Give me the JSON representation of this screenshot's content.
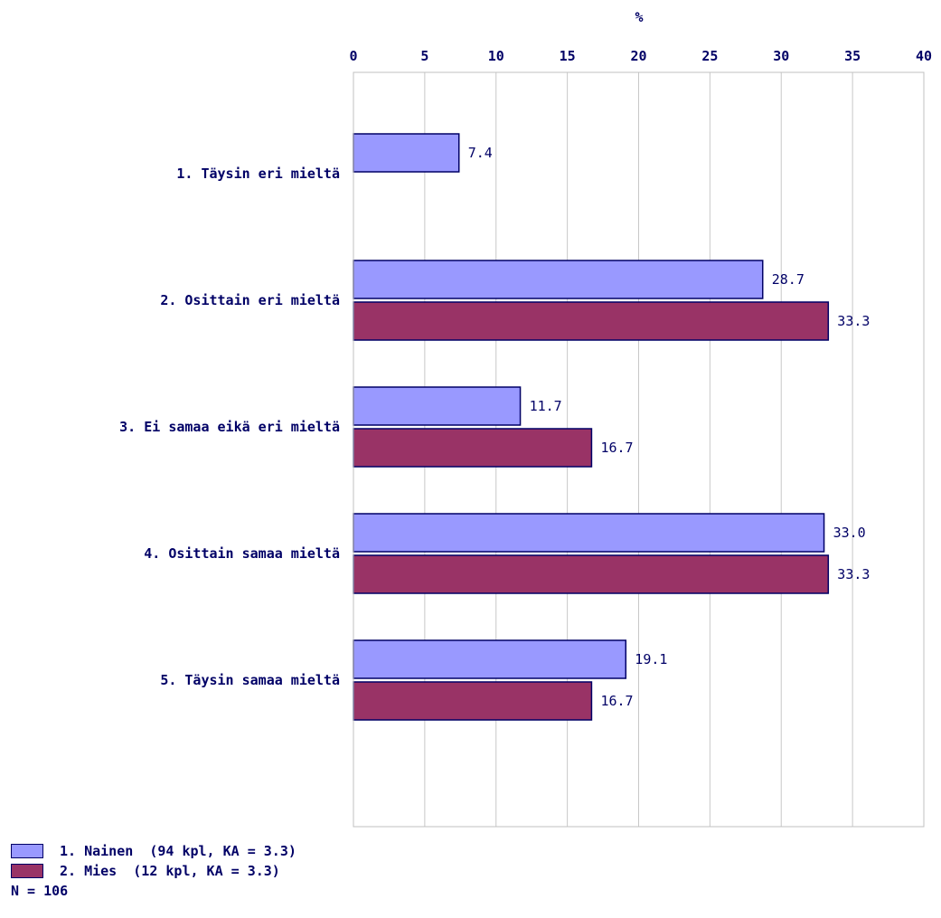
{
  "chart_data": {
    "type": "bar",
    "orientation": "horizontal",
    "xlabel": "%",
    "xlim": [
      0,
      40
    ],
    "xticks": [
      0,
      5,
      10,
      15,
      20,
      25,
      30,
      35,
      40
    ],
    "grid": true,
    "categories": [
      "1. Täysin eri mieltä",
      "2. Osittain eri mieltä",
      "3. Ei samaa eikä eri mieltä",
      "4. Osittain samaa mieltä",
      "5. Täysin samaa mieltä"
    ],
    "series": [
      {
        "name": "1. Nainen",
        "legend_label": "1. Nainen  (94 kpl, KA = 3.3)",
        "color": "#9999ff",
        "values": [
          7.4,
          28.7,
          11.7,
          33.0,
          19.1
        ],
        "labels": [
          "7.4",
          "28.7",
          "11.7",
          "33.0",
          "19.1"
        ]
      },
      {
        "name": "2. Mies",
        "legend_label": "2. Mies  (12 kpl, KA = 3.3)",
        "color": "#993366",
        "values": [
          null,
          33.3,
          16.7,
          33.3,
          16.7
        ],
        "labels": [
          null,
          "33.3",
          "16.7",
          "33.3",
          "16.7"
        ]
      }
    ],
    "legend_placement": "bottom-left",
    "footnote": "N = 106"
  }
}
